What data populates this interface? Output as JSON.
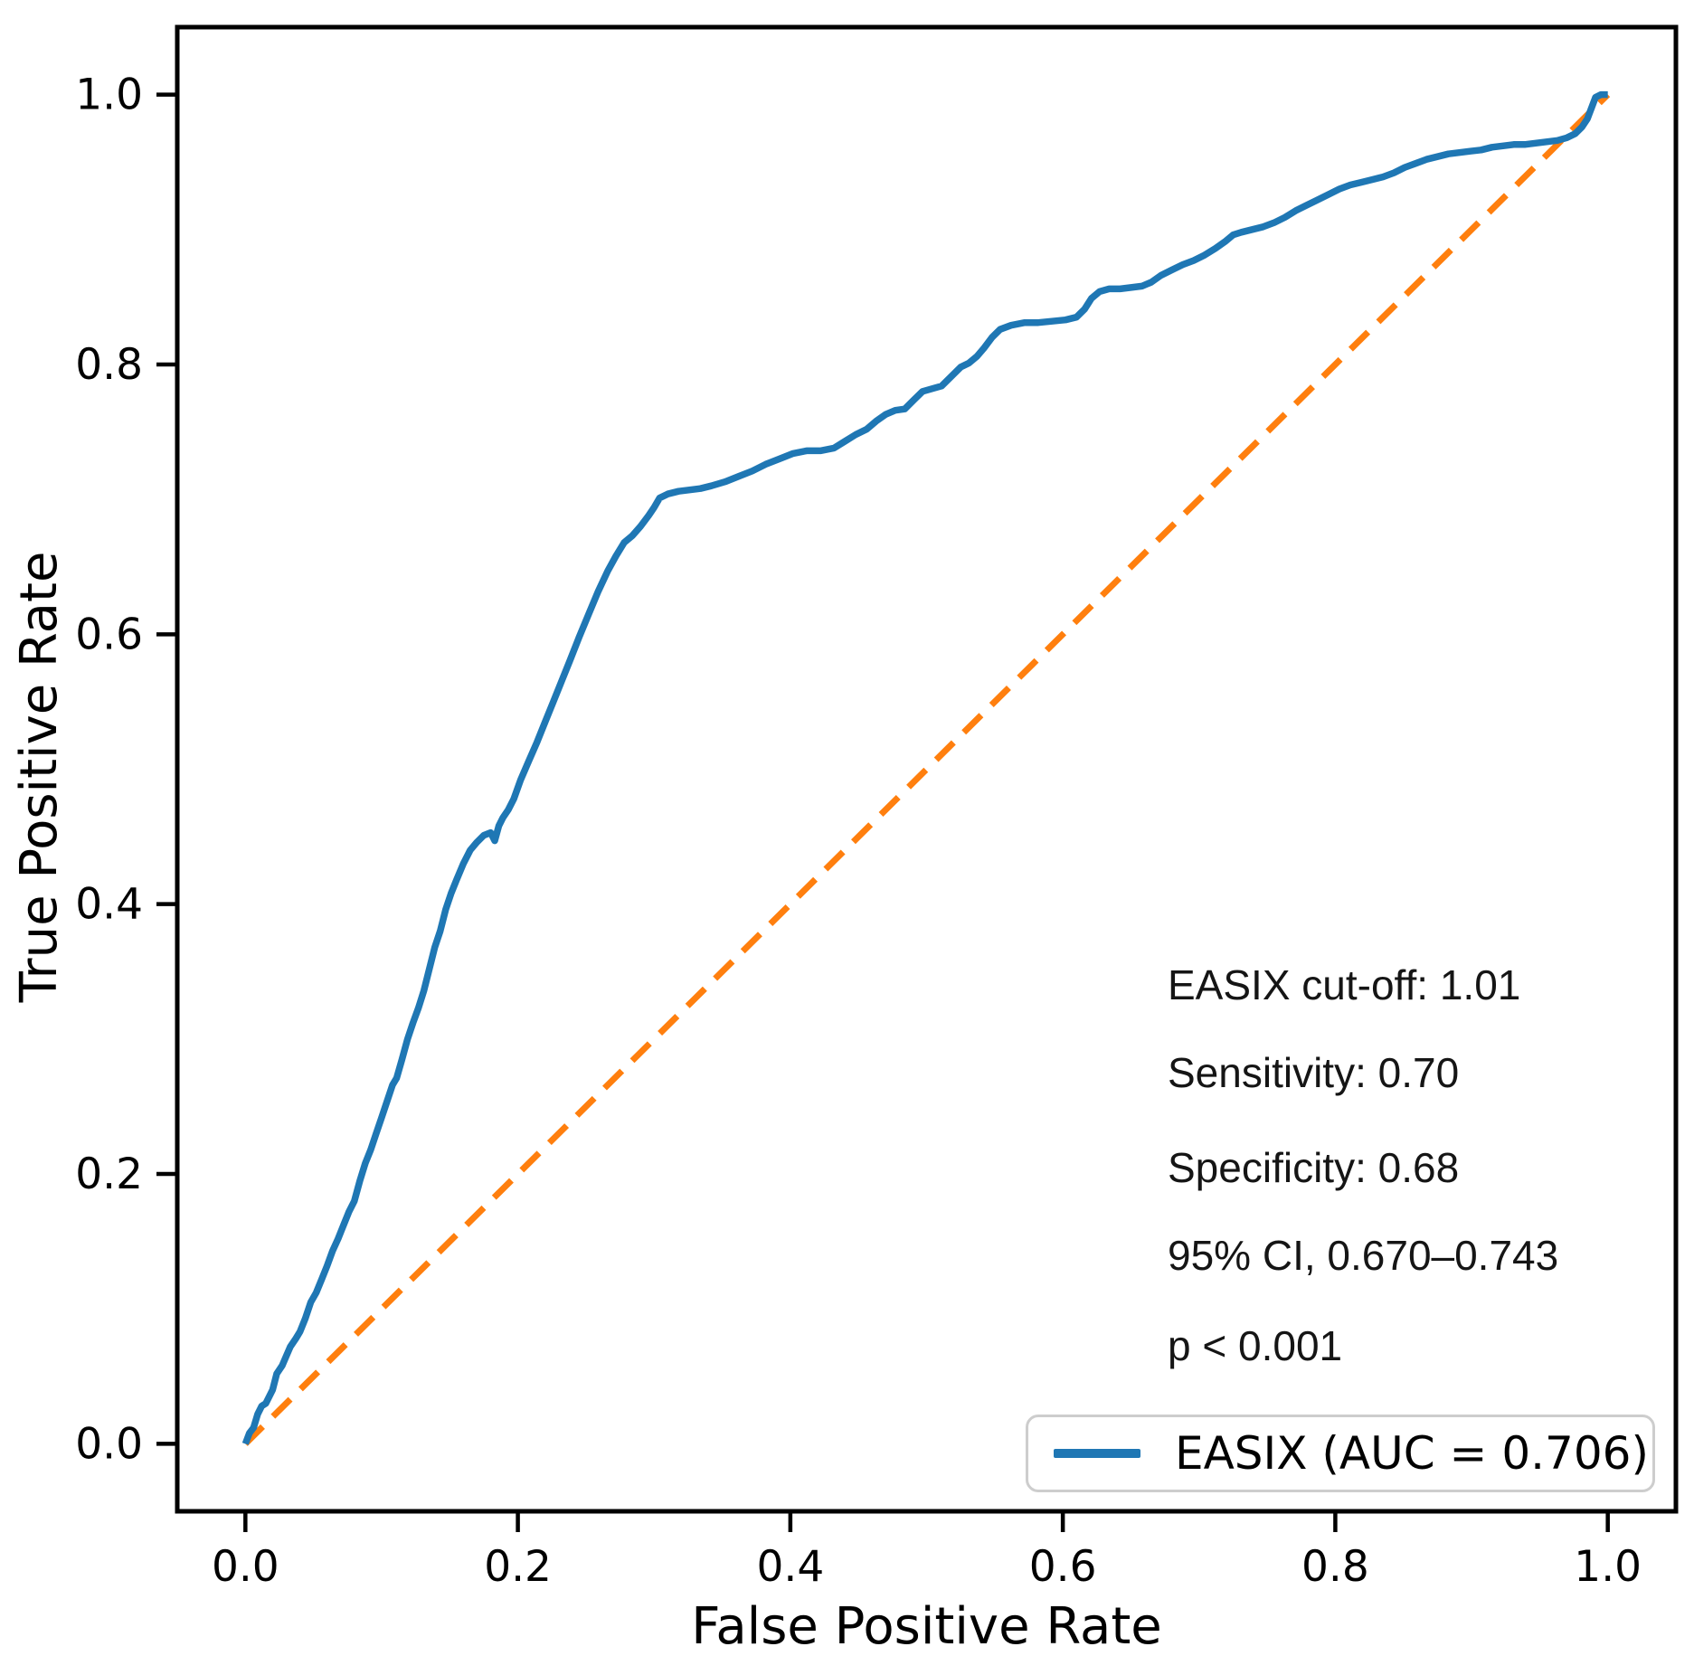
{
  "chart_data": {
    "type": "line",
    "title": "",
    "xlabel": "False Positive Rate",
    "ylabel": "True Positive Rate",
    "xlim": [
      -0.05,
      1.05
    ],
    "ylim": [
      -0.05,
      1.05
    ],
    "xticks": [
      0.0,
      0.2,
      0.4,
      0.6,
      0.8,
      1.0
    ],
    "yticks": [
      0.0,
      0.2,
      0.4,
      0.6,
      0.8,
      1.0
    ],
    "grid": false,
    "legend": {
      "position": "lower right",
      "entries": [
        "EASIX (AUC = 0.706)"
      ]
    },
    "series": [
      {
        "name": "chance-diagonal",
        "color": "#ff7f0e",
        "line_style": "dashed",
        "line_width": 7,
        "points": [
          [
            0.0,
            0.0
          ],
          [
            1.0,
            1.0
          ]
        ]
      },
      {
        "name": "EASIX (AUC = 0.706)",
        "color": "#1f77b4",
        "line_style": "solid",
        "line_width": 7.5,
        "points": [
          [
            0.0,
            0.0
          ],
          [
            0.003,
            0.008
          ],
          [
            0.006,
            0.012
          ],
          [
            0.009,
            0.022
          ],
          [
            0.012,
            0.028
          ],
          [
            0.015,
            0.03
          ],
          [
            0.017,
            0.034
          ],
          [
            0.02,
            0.04
          ],
          [
            0.023,
            0.052
          ],
          [
            0.027,
            0.058
          ],
          [
            0.03,
            0.065
          ],
          [
            0.033,
            0.072
          ],
          [
            0.037,
            0.078
          ],
          [
            0.04,
            0.083
          ],
          [
            0.044,
            0.093
          ],
          [
            0.048,
            0.105
          ],
          [
            0.052,
            0.112
          ],
          [
            0.056,
            0.122
          ],
          [
            0.06,
            0.132
          ],
          [
            0.064,
            0.143
          ],
          [
            0.068,
            0.152
          ],
          [
            0.072,
            0.162
          ],
          [
            0.076,
            0.172
          ],
          [
            0.08,
            0.18
          ],
          [
            0.084,
            0.195
          ],
          [
            0.088,
            0.208
          ],
          [
            0.092,
            0.218
          ],
          [
            0.096,
            0.23
          ],
          [
            0.1,
            0.242
          ],
          [
            0.104,
            0.254
          ],
          [
            0.108,
            0.266
          ],
          [
            0.111,
            0.271
          ],
          [
            0.115,
            0.285
          ],
          [
            0.119,
            0.3
          ],
          [
            0.123,
            0.312
          ],
          [
            0.127,
            0.323
          ],
          [
            0.131,
            0.336
          ],
          [
            0.135,
            0.352
          ],
          [
            0.139,
            0.368
          ],
          [
            0.143,
            0.38
          ],
          [
            0.147,
            0.396
          ],
          [
            0.151,
            0.408
          ],
          [
            0.155,
            0.418
          ],
          [
            0.16,
            0.43
          ],
          [
            0.165,
            0.44
          ],
          [
            0.17,
            0.446
          ],
          [
            0.175,
            0.451
          ],
          [
            0.18,
            0.453
          ],
          [
            0.183,
            0.447
          ],
          [
            0.186,
            0.458
          ],
          [
            0.189,
            0.464
          ],
          [
            0.193,
            0.47
          ],
          [
            0.197,
            0.478
          ],
          [
            0.202,
            0.492
          ],
          [
            0.208,
            0.506
          ],
          [
            0.214,
            0.52
          ],
          [
            0.22,
            0.535
          ],
          [
            0.226,
            0.55
          ],
          [
            0.232,
            0.565
          ],
          [
            0.238,
            0.58
          ],
          [
            0.245,
            0.598
          ],
          [
            0.252,
            0.615
          ],
          [
            0.259,
            0.632
          ],
          [
            0.266,
            0.647
          ],
          [
            0.272,
            0.658
          ],
          [
            0.278,
            0.668
          ],
          [
            0.284,
            0.673
          ],
          [
            0.29,
            0.68
          ],
          [
            0.296,
            0.688
          ],
          [
            0.3,
            0.694
          ],
          [
            0.304,
            0.701
          ],
          [
            0.31,
            0.704
          ],
          [
            0.318,
            0.706
          ],
          [
            0.326,
            0.707
          ],
          [
            0.334,
            0.708
          ],
          [
            0.342,
            0.71
          ],
          [
            0.352,
            0.713
          ],
          [
            0.362,
            0.717
          ],
          [
            0.372,
            0.721
          ],
          [
            0.382,
            0.726
          ],
          [
            0.392,
            0.73
          ],
          [
            0.402,
            0.734
          ],
          [
            0.412,
            0.736
          ],
          [
            0.422,
            0.736
          ],
          [
            0.432,
            0.738
          ],
          [
            0.44,
            0.743
          ],
          [
            0.448,
            0.748
          ],
          [
            0.456,
            0.752
          ],
          [
            0.463,
            0.758
          ],
          [
            0.47,
            0.763
          ],
          [
            0.477,
            0.766
          ],
          [
            0.484,
            0.767
          ],
          [
            0.49,
            0.773
          ],
          [
            0.497,
            0.78
          ],
          [
            0.504,
            0.782
          ],
          [
            0.511,
            0.784
          ],
          [
            0.518,
            0.791
          ],
          [
            0.525,
            0.798
          ],
          [
            0.531,
            0.801
          ],
          [
            0.537,
            0.806
          ],
          [
            0.542,
            0.812
          ],
          [
            0.548,
            0.82
          ],
          [
            0.554,
            0.826
          ],
          [
            0.562,
            0.829
          ],
          [
            0.572,
            0.831
          ],
          [
            0.582,
            0.831
          ],
          [
            0.592,
            0.832
          ],
          [
            0.602,
            0.833
          ],
          [
            0.61,
            0.835
          ],
          [
            0.616,
            0.841
          ],
          [
            0.621,
            0.849
          ],
          [
            0.627,
            0.854
          ],
          [
            0.634,
            0.856
          ],
          [
            0.642,
            0.856
          ],
          [
            0.65,
            0.857
          ],
          [
            0.658,
            0.858
          ],
          [
            0.665,
            0.861
          ],
          [
            0.672,
            0.866
          ],
          [
            0.68,
            0.87
          ],
          [
            0.688,
            0.874
          ],
          [
            0.696,
            0.877
          ],
          [
            0.704,
            0.881
          ],
          [
            0.712,
            0.886
          ],
          [
            0.719,
            0.891
          ],
          [
            0.725,
            0.896
          ],
          [
            0.731,
            0.898
          ],
          [
            0.739,
            0.9
          ],
          [
            0.747,
            0.902
          ],
          [
            0.755,
            0.905
          ],
          [
            0.763,
            0.909
          ],
          [
            0.771,
            0.914
          ],
          [
            0.779,
            0.918
          ],
          [
            0.787,
            0.922
          ],
          [
            0.795,
            0.926
          ],
          [
            0.803,
            0.93
          ],
          [
            0.811,
            0.933
          ],
          [
            0.819,
            0.935
          ],
          [
            0.827,
            0.937
          ],
          [
            0.835,
            0.939
          ],
          [
            0.843,
            0.942
          ],
          [
            0.851,
            0.946
          ],
          [
            0.859,
            0.949
          ],
          [
            0.867,
            0.952
          ],
          [
            0.875,
            0.954
          ],
          [
            0.883,
            0.956
          ],
          [
            0.891,
            0.957
          ],
          [
            0.899,
            0.958
          ],
          [
            0.907,
            0.959
          ],
          [
            0.915,
            0.961
          ],
          [
            0.923,
            0.962
          ],
          [
            0.931,
            0.963
          ],
          [
            0.939,
            0.963
          ],
          [
            0.947,
            0.964
          ],
          [
            0.955,
            0.965
          ],
          [
            0.963,
            0.966
          ],
          [
            0.97,
            0.968
          ],
          [
            0.976,
            0.971
          ],
          [
            0.981,
            0.976
          ],
          [
            0.985,
            0.982
          ],
          [
            0.988,
            0.99
          ],
          [
            0.991,
            0.998
          ],
          [
            0.995,
            1.0
          ],
          [
            1.0,
            1.0
          ]
        ]
      }
    ],
    "annotations": [
      {
        "text": "EASIX cut-off: 1.01",
        "x": 0.68,
        "y": 0.34
      },
      {
        "text": "Sensitivity: 0.70",
        "x": 0.68,
        "y": 0.275
      },
      {
        "text": "Specificity: 0.68",
        "x": 0.68,
        "y": 0.205
      },
      {
        "text": "95% CI, 0.670–0.743",
        "x": 0.68,
        "y": 0.14
      },
      {
        "text": "p < 0.001",
        "x": 0.68,
        "y": 0.073
      }
    ]
  },
  "colors": {
    "roc_line": "#1f77b4",
    "diagonal_line": "#ff7f0e",
    "axes": "#000000",
    "legend_border": "#cdcdcd",
    "background": "#ffffff"
  }
}
